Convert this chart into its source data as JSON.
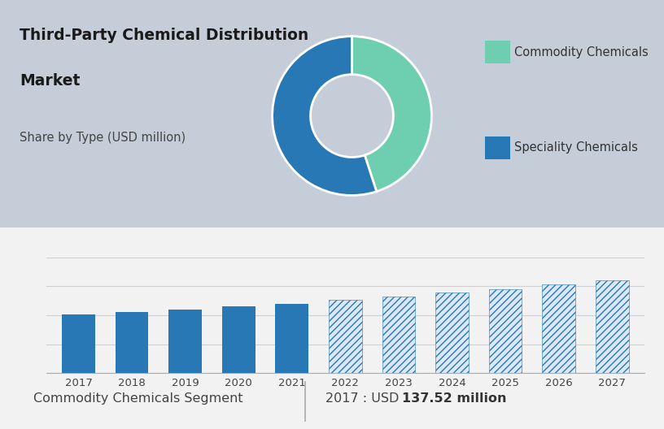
{
  "title_line1": "Third-Party Chemical Distribution",
  "title_line2": "Market",
  "subtitle": "Share by Type (USD million)",
  "top_bg_color": "#c5cdd8",
  "bottom_bg_color": "#f2f2f2",
  "white_bg": "#ffffff",
  "donut_colors": [
    "#6dcfb0",
    "#2778b5"
  ],
  "donut_labels": [
    "Commodity Chemicals",
    "Speciality Chemicals"
  ],
  "donut_values": [
    45,
    55
  ],
  "bar_years": [
    "2017",
    "2018",
    "2019",
    "2020",
    "2021",
    "2022",
    "2023",
    "2024",
    "2025",
    "2026",
    "2027"
  ],
  "bar_values": [
    137.52,
    143,
    149,
    155,
    162,
    170,
    178,
    187,
    196,
    206,
    217
  ],
  "bar_solid_color": "#2778b5",
  "bar_hatch_color": "#2778b5",
  "bar_hatch_bg": "#dce8f5",
  "solid_years": 5,
  "footer_label": "Commodity Chemicals Segment",
  "footer_value_plain": "2017 : USD ",
  "footer_value_bold": "137.52 million",
  "grid_color": "#d0d0d0",
  "title_fontsize": 13.5,
  "subtitle_fontsize": 10.5,
  "legend_fontsize": 10.5,
  "bar_fontsize": 9.5,
  "footer_fontsize": 11.5
}
